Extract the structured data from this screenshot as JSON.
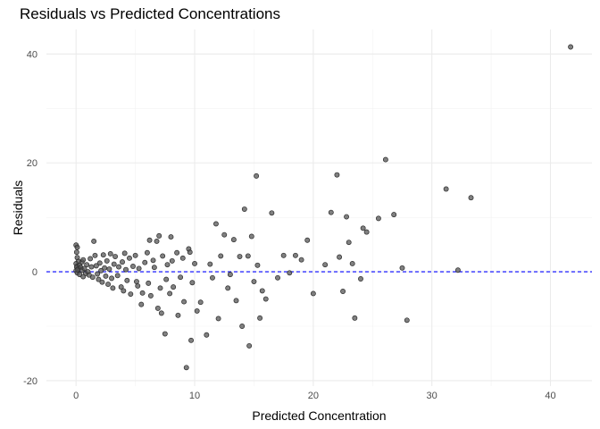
{
  "chart_data": {
    "type": "scatter",
    "title": "Residuals vs Predicted Concentrations",
    "xlabel": "Predicted Concentration",
    "ylabel": "Residuals",
    "xlim": [
      -2.5,
      43.5
    ],
    "ylim": [
      -21,
      44.5
    ],
    "x_ticks": [
      0,
      10,
      20,
      30,
      40
    ],
    "y_ticks": [
      -20,
      0,
      20,
      40
    ],
    "grid": true,
    "legend": "none",
    "reference_line": {
      "y": 0,
      "style": "dashed",
      "color": "#0000ff"
    },
    "point_color": "#2b2b2b",
    "point_fill": "#555555",
    "points": [
      [
        0.0,
        4.9
      ],
      [
        0.1,
        4.5
      ],
      [
        0.05,
        3.6
      ],
      [
        0.1,
        2.6
      ],
      [
        0.2,
        1.9
      ],
      [
        0.0,
        1.5
      ],
      [
        0.1,
        1.0
      ],
      [
        0.2,
        0.6
      ],
      [
        0.0,
        0.2
      ],
      [
        0.1,
        -0.2
      ],
      [
        0.3,
        -0.5
      ],
      [
        0.05,
        0.9
      ],
      [
        0.15,
        0.4
      ],
      [
        0.3,
        1.2
      ],
      [
        0.4,
        0.8
      ],
      [
        0.5,
        0.3
      ],
      [
        0.5,
        1.8
      ],
      [
        0.6,
        2.2
      ],
      [
        0.7,
        0.6
      ],
      [
        0.8,
        -0.3
      ],
      [
        0.6,
        -0.9
      ],
      [
        0.9,
        1.3
      ],
      [
        1.0,
        0.0
      ],
      [
        1.1,
        -0.6
      ],
      [
        1.2,
        2.4
      ],
      [
        1.3,
        0.9
      ],
      [
        1.4,
        -1.0
      ],
      [
        1.5,
        5.6
      ],
      [
        1.6,
        3.0
      ],
      [
        1.7,
        1.1
      ],
      [
        1.8,
        -0.4
      ],
      [
        1.9,
        -1.4
      ],
      [
        2.0,
        1.6
      ],
      [
        2.1,
        0.2
      ],
      [
        2.2,
        -1.9
      ],
      [
        2.3,
        3.1
      ],
      [
        2.4,
        0.7
      ],
      [
        2.5,
        -0.8
      ],
      [
        2.6,
        2.0
      ],
      [
        2.7,
        -2.3
      ],
      [
        2.8,
        0.5
      ],
      [
        2.9,
        3.3
      ],
      [
        3.0,
        -1.2
      ],
      [
        3.1,
        -3.0
      ],
      [
        3.2,
        1.4
      ],
      [
        3.3,
        2.8
      ],
      [
        3.5,
        -0.7
      ],
      [
        3.6,
        0.9
      ],
      [
        3.8,
        -2.8
      ],
      [
        3.9,
        1.8
      ],
      [
        4.0,
        -3.5
      ],
      [
        4.1,
        3.4
      ],
      [
        4.2,
        0.4
      ],
      [
        4.3,
        -1.6
      ],
      [
        4.5,
        2.5
      ],
      [
        4.6,
        -4.1
      ],
      [
        4.8,
        1.0
      ],
      [
        5.0,
        3.0
      ],
      [
        5.1,
        -1.8
      ],
      [
        5.2,
        -2.6
      ],
      [
        5.3,
        0.6
      ],
      [
        5.5,
        -6.0
      ],
      [
        5.6,
        -3.9
      ],
      [
        5.8,
        1.7
      ],
      [
        6.0,
        3.5
      ],
      [
        6.1,
        -2.1
      ],
      [
        6.2,
        5.8
      ],
      [
        6.3,
        -4.4
      ],
      [
        6.5,
        2.1
      ],
      [
        6.6,
        0.8
      ],
      [
        6.8,
        5.6
      ],
      [
        6.9,
        -6.7
      ],
      [
        7.0,
        6.6
      ],
      [
        7.1,
        -3.0
      ],
      [
        7.2,
        -7.6
      ],
      [
        7.3,
        2.9
      ],
      [
        7.5,
        -11.4
      ],
      [
        7.6,
        -1.4
      ],
      [
        7.7,
        1.3
      ],
      [
        7.9,
        -4.0
      ],
      [
        8.0,
        6.4
      ],
      [
        8.1,
        2.0
      ],
      [
        8.2,
        -2.8
      ],
      [
        8.5,
        3.5
      ],
      [
        8.6,
        -8.0
      ],
      [
        8.8,
        -1.0
      ],
      [
        9.0,
        2.5
      ],
      [
        9.1,
        -5.5
      ],
      [
        9.3,
        -17.6
      ],
      [
        9.5,
        4.2
      ],
      [
        9.6,
        3.6
      ],
      [
        9.7,
        -12.6
      ],
      [
        9.8,
        -2.0
      ],
      [
        10.0,
        1.5
      ],
      [
        10.2,
        -7.2
      ],
      [
        10.5,
        -5.6
      ],
      [
        11.0,
        -11.6
      ],
      [
        11.3,
        1.4
      ],
      [
        11.5,
        -1.1
      ],
      [
        11.8,
        8.8
      ],
      [
        12.0,
        -8.6
      ],
      [
        12.2,
        2.9
      ],
      [
        12.5,
        6.8
      ],
      [
        12.8,
        -3.0
      ],
      [
        13.0,
        -0.5
      ],
      [
        13.3,
        5.9
      ],
      [
        13.5,
        -5.3
      ],
      [
        13.8,
        2.8
      ],
      [
        14.0,
        -10.0
      ],
      [
        14.2,
        11.5
      ],
      [
        14.5,
        2.9
      ],
      [
        14.6,
        -13.6
      ],
      [
        14.8,
        6.5
      ],
      [
        15.0,
        -1.8
      ],
      [
        15.2,
        17.6
      ],
      [
        15.3,
        1.2
      ],
      [
        15.5,
        -8.5
      ],
      [
        15.7,
        -3.5
      ],
      [
        16.0,
        -5.0
      ],
      [
        16.5,
        10.8
      ],
      [
        17.0,
        -1.1
      ],
      [
        17.5,
        3.0
      ],
      [
        18.0,
        -0.2
      ],
      [
        18.5,
        3.0
      ],
      [
        19.0,
        2.2
      ],
      [
        19.5,
        5.8
      ],
      [
        20.0,
        -4.0
      ],
      [
        21.0,
        1.3
      ],
      [
        21.5,
        10.9
      ],
      [
        22.0,
        17.8
      ],
      [
        22.2,
        2.7
      ],
      [
        22.5,
        -3.6
      ],
      [
        22.8,
        10.1
      ],
      [
        23.0,
        5.4
      ],
      [
        23.3,
        1.5
      ],
      [
        23.5,
        -8.5
      ],
      [
        24.0,
        -1.3
      ],
      [
        24.2,
        8.0
      ],
      [
        24.5,
        7.3
      ],
      [
        25.5,
        9.8
      ],
      [
        26.1,
        20.6
      ],
      [
        26.8,
        10.5
      ],
      [
        27.5,
        0.7
      ],
      [
        27.9,
        -8.9
      ],
      [
        31.2,
        15.2
      ],
      [
        32.2,
        0.3
      ],
      [
        33.3,
        13.6
      ],
      [
        41.7,
        41.3
      ]
    ]
  }
}
